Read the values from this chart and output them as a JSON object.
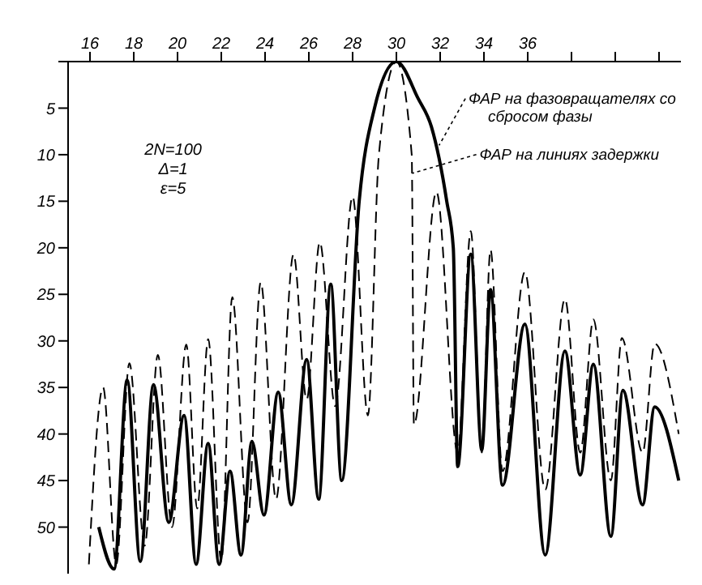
{
  "chart_data": {
    "type": "line",
    "xlim": [
      15,
      43
    ],
    "ylim": [
      55,
      0
    ],
    "xticks": [
      16,
      18,
      20,
      22,
      24,
      26,
      28,
      30,
      32,
      34,
      36,
      {
        "value": 38,
        "label": null
      },
      {
        "value": 40,
        "label": null
      },
      {
        "value": 42,
        "label": null
      }
    ],
    "yticks": [
      {
        "value": 0,
        "label": null
      },
      5,
      10,
      15,
      20,
      25,
      30,
      35,
      40,
      45,
      50
    ],
    "legend": "top right",
    "annotations": [
      "2N=100",
      "Δ=1",
      "ε=5"
    ],
    "series": [
      {
        "name": "ФАР на фазовращателях со сбросом фазы",
        "color": "#000000",
        "line_style": "solid",
        "x": [
          16.4,
          17.1,
          17.7,
          18.3,
          18.9,
          19.6,
          20.3,
          20.85,
          21.4,
          21.9,
          22.4,
          22.9,
          23.4,
          23.95,
          24.6,
          25.2,
          25.9,
          26.45,
          27.0,
          27.5,
          28.3,
          29.0,
          30.0,
          31.0,
          31.6,
          32.3,
          32.6,
          32.8,
          33.4,
          33.9,
          34.3,
          34.85,
          35.87,
          36.8,
          37.7,
          38.4,
          39.0,
          39.8,
          40.35,
          41.25,
          41.8,
          42.9
        ],
        "values": [
          50,
          54.5,
          34.2,
          53.7,
          34.7,
          49.5,
          38,
          54,
          41,
          54,
          44,
          53,
          40.8,
          48.7,
          35.5,
          47.6,
          32,
          47,
          23.9,
          45,
          15,
          5,
          0,
          4,
          7,
          15,
          20,
          43.5,
          20.7,
          41.7,
          24.5,
          45.5,
          28.2,
          53,
          31.1,
          44.4,
          32.5,
          51,
          35.3,
          47.6,
          37.1,
          45
        ]
      },
      {
        "name": "ФАР на линиях задержки",
        "color": "#000000",
        "line_style": "dashed",
        "x": [
          15.95,
          16.6,
          17.2,
          17.8,
          18.5,
          19.1,
          19.75,
          20.4,
          20.9,
          21.4,
          22.0,
          22.5,
          23.2,
          23.8,
          24.5,
          25.3,
          25.9,
          26.5,
          27.2,
          28.0,
          28.7,
          29.2,
          30.0,
          30.7,
          30.8,
          31.83,
          32.8,
          33.4,
          33.9,
          34.3,
          34.85,
          35.87,
          36.8,
          37.7,
          38.4,
          39.0,
          39.8,
          40.3,
          41.25,
          41.8,
          42.9
        ],
        "values": [
          54,
          35,
          54,
          32.4,
          52,
          31.5,
          50,
          30.4,
          48,
          29.8,
          53.7,
          25.3,
          49.5,
          23.7,
          47,
          20.7,
          36.3,
          19.4,
          37,
          14.5,
          38,
          10,
          0,
          10,
          39,
          14,
          42,
          18.2,
          42,
          20.2,
          44,
          22.6,
          46,
          25.5,
          42,
          27.7,
          45,
          29.7,
          42,
          30.3,
          40
        ]
      }
    ]
  }
}
